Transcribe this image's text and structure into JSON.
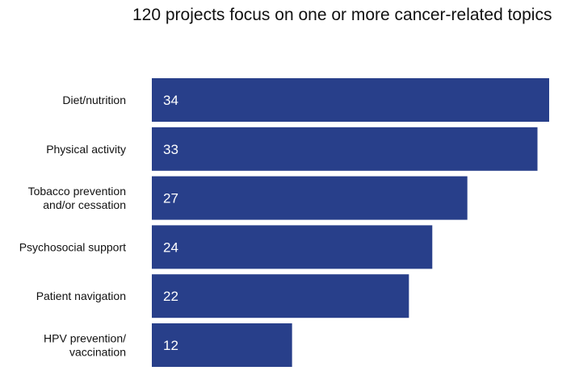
{
  "chart_data": {
    "type": "bar",
    "orientation": "horizontal",
    "title": "120 projects focus on one or more cancer-related topics",
    "categories": [
      [
        "Diet/nutrition"
      ],
      [
        "Physical activity"
      ],
      [
        "Tobacco prevention",
        "and/or cessation"
      ],
      [
        "Psychosocial support"
      ],
      [
        "Patient navigation"
      ],
      [
        "HPV prevention/",
        "vaccination"
      ]
    ],
    "values": [
      34,
      33,
      27,
      24,
      22,
      12
    ],
    "xlabel": "",
    "ylabel": "",
    "xlim": [
      0,
      34
    ],
    "grid": false,
    "bar_color": "#283F8A",
    "value_label_color": "#FFFFFF"
  }
}
